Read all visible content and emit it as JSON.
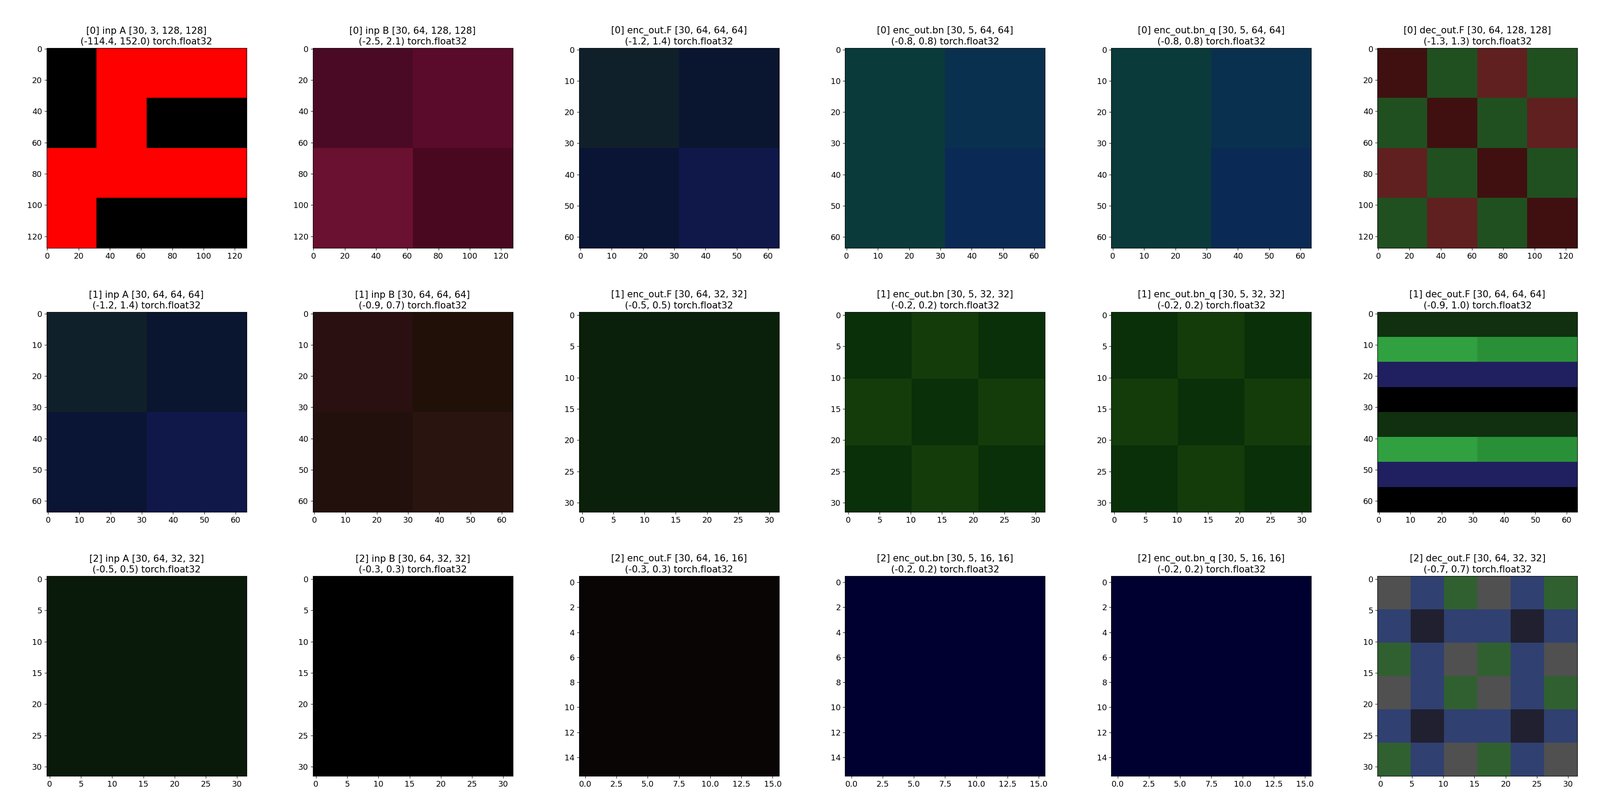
{
  "chart_data": [
    {
      "type": "image",
      "title": "[0] inp A [30, 3, 128, 128]\n(-114.4, 152.0) torch.float32",
      "xlim": [
        -0.5,
        127.5
      ],
      "ylim": [
        127.5,
        -0.5
      ],
      "xticks": [
        0,
        20,
        40,
        60,
        80,
        100,
        120
      ],
      "yticks": [
        0,
        20,
        40,
        60,
        80,
        100,
        120
      ],
      "cells": [
        [
          "#000000",
          "#ff0000",
          "#ff0000",
          "#ff0000"
        ],
        [
          "#000000",
          "#ff0000",
          "#000000",
          "#000000"
        ],
        [
          "#ff0000",
          "#ff0000",
          "#ff0000",
          "#ff0000"
        ],
        [
          "#ff0000",
          "#000000",
          "#000000",
          "#000000"
        ]
      ]
    },
    {
      "type": "image",
      "title": "[0] inp B [30, 64, 128, 128]\n(-2.5, 2.1) torch.float32",
      "xlim": [
        -0.5,
        127.5
      ],
      "ylim": [
        127.5,
        -0.5
      ],
      "xticks": [
        0,
        20,
        40,
        60,
        80,
        100,
        120
      ],
      "yticks": [
        0,
        20,
        40,
        60,
        80,
        100,
        120
      ],
      "cells": [
        [
          "#4a0a25",
          "#5a0a2a"
        ],
        [
          "#6a1030",
          "#4a0820"
        ]
      ]
    },
    {
      "type": "image",
      "title": "[0] enc_out.F [30, 64, 64, 64]\n(-1.2, 1.4) torch.float32",
      "xlim": [
        -0.5,
        63.5
      ],
      "ylim": [
        63.5,
        -0.5
      ],
      "xticks": [
        0,
        10,
        20,
        30,
        40,
        50,
        60
      ],
      "yticks": [
        0,
        10,
        20,
        30,
        40,
        50,
        60
      ],
      "cells": [
        [
          "#10202a",
          "#0a1530"
        ],
        [
          "#0a1535",
          "#10184a"
        ]
      ]
    },
    {
      "type": "image",
      "title": "[0] enc_out.bn [30, 5, 64, 64]\n(-0.8, 0.8) torch.float32",
      "xlim": [
        -0.5,
        63.5
      ],
      "ylim": [
        63.5,
        -0.5
      ],
      "xticks": [
        0,
        10,
        20,
        30,
        40,
        50,
        60
      ],
      "yticks": [
        0,
        10,
        20,
        30,
        40,
        50,
        60
      ],
      "cells": [
        [
          "#0a3a3a",
          "#0a3050"
        ],
        [
          "#0a3a3a",
          "#0a2a55"
        ]
      ]
    },
    {
      "type": "image",
      "title": "[0] enc_out.bn_q [30, 5, 64, 64]\n(-0.8, 0.8) torch.float32",
      "xlim": [
        -0.5,
        63.5
      ],
      "ylim": [
        63.5,
        -0.5
      ],
      "xticks": [
        0,
        10,
        20,
        30,
        40,
        50,
        60
      ],
      "yticks": [
        0,
        10,
        20,
        30,
        40,
        50,
        60
      ],
      "cells": [
        [
          "#0a3a3a",
          "#0a3050"
        ],
        [
          "#0a3a3a",
          "#0a2a55"
        ]
      ]
    },
    {
      "type": "image",
      "title": "[0] dec_out.F [30, 64, 128, 128]\n(-1.3, 1.3) torch.float32",
      "xlim": [
        -0.5,
        127.5
      ],
      "ylim": [
        127.5,
        -0.5
      ],
      "xticks": [
        0,
        20,
        40,
        60,
        80,
        100,
        120
      ],
      "yticks": [
        0,
        20,
        40,
        60,
        80,
        100,
        120
      ],
      "cells": [
        [
          "#401010",
          "#205020",
          "#602020",
          "#205020"
        ],
        [
          "#205020",
          "#401010",
          "#205020",
          "#602020"
        ],
        [
          "#602020",
          "#205020",
          "#401010",
          "#205020"
        ],
        [
          "#205020",
          "#602020",
          "#205020",
          "#401010"
        ]
      ]
    },
    {
      "type": "image",
      "title": "[1] inp A [30, 64, 64, 64]\n(-1.2, 1.4) torch.float32",
      "xlim": [
        -0.5,
        63.5
      ],
      "ylim": [
        63.5,
        -0.5
      ],
      "xticks": [
        0,
        10,
        20,
        30,
        40,
        50,
        60
      ],
      "yticks": [
        0,
        10,
        20,
        30,
        40,
        50,
        60
      ],
      "cells": [
        [
          "#10202a",
          "#0a1530"
        ],
        [
          "#0a1535",
          "#10184a"
        ]
      ]
    },
    {
      "type": "image",
      "title": "[1] inp B [30, 64, 64, 64]\n(-0.9, 0.7) torch.float32",
      "xlim": [
        -0.5,
        63.5
      ],
      "ylim": [
        63.5,
        -0.5
      ],
      "xticks": [
        0,
        10,
        20,
        30,
        40,
        50,
        60
      ],
      "yticks": [
        0,
        10,
        20,
        30,
        40,
        50,
        60
      ],
      "cells": [
        [
          "#2a1010",
          "#201008"
        ],
        [
          "#22100c",
          "#2a1410"
        ]
      ]
    },
    {
      "type": "image",
      "title": "[1] enc_out.F [30, 64, 32, 32]\n(-0.5, 0.5) torch.float32",
      "xlim": [
        -0.5,
        31.5
      ],
      "ylim": [
        31.5,
        -0.5
      ],
      "xticks": [
        0,
        5,
        10,
        15,
        20,
        25,
        30
      ],
      "yticks": [
        0,
        5,
        10,
        15,
        20,
        25,
        30
      ],
      "cells": [
        [
          "#0a200a"
        ]
      ]
    },
    {
      "type": "image",
      "title": "[1] enc_out.bn [30, 5, 32, 32]\n(-0.2, 0.2) torch.float32",
      "xlim": [
        -0.5,
        31.5
      ],
      "ylim": [
        31.5,
        -0.5
      ],
      "xticks": [
        0,
        5,
        10,
        15,
        20,
        25,
        30
      ],
      "yticks": [
        0,
        5,
        10,
        15,
        20,
        25,
        30
      ],
      "cells": [
        [
          "#0a300a",
          "#143c0a",
          "#0a300a"
        ],
        [
          "#143c0a",
          "#0a300a",
          "#143c0a"
        ],
        [
          "#0a300a",
          "#143c0a",
          "#0a300a"
        ]
      ]
    },
    {
      "type": "image",
      "title": "[1] enc_out.bn_q [30, 5, 32, 32]\n(-0.2, 0.2) torch.float32",
      "xlim": [
        -0.5,
        31.5
      ],
      "ylim": [
        31.5,
        -0.5
      ],
      "xticks": [
        0,
        5,
        10,
        15,
        20,
        25,
        30
      ],
      "yticks": [
        0,
        5,
        10,
        15,
        20,
        25,
        30
      ],
      "cells": [
        [
          "#0a300a",
          "#143c0a",
          "#0a300a"
        ],
        [
          "#143c0a",
          "#0a300a",
          "#143c0a"
        ],
        [
          "#0a300a",
          "#143c0a",
          "#0a300a"
        ]
      ]
    },
    {
      "type": "image",
      "title": "[1] dec_out.F [30, 64, 64, 64]\n(-0.9, 1.0) torch.float32",
      "xlim": [
        -0.5,
        63.5
      ],
      "ylim": [
        63.5,
        -0.5
      ],
      "xticks": [
        0,
        10,
        20,
        30,
        40,
        50,
        60
      ],
      "yticks": [
        0,
        10,
        20,
        30,
        40,
        50,
        60
      ],
      "cells": [
        [
          "#103010",
          "#103010"
        ],
        [
          "#30a040",
          "#2a9038"
        ],
        [
          "#202060",
          "#202060"
        ],
        [
          "#000000",
          "#000000"
        ],
        [
          "#103010",
          "#103010"
        ],
        [
          "#30a040",
          "#2a9038"
        ],
        [
          "#202060",
          "#202060"
        ],
        [
          "#000000",
          "#000000"
        ]
      ]
    },
    {
      "type": "image",
      "title": "[2] inp A [30, 64, 32, 32]\n(-0.5, 0.5) torch.float32",
      "xlim": [
        -0.5,
        31.5
      ],
      "ylim": [
        31.5,
        -0.5
      ],
      "xticks": [
        0,
        5,
        10,
        15,
        20,
        25,
        30
      ],
      "yticks": [
        0,
        5,
        10,
        15,
        20,
        25,
        30
      ],
      "cells": [
        [
          "#0a1a0a"
        ]
      ]
    },
    {
      "type": "image",
      "title": "[2] inp B [30, 64, 32, 32]\n(-0.3, 0.3) torch.float32",
      "xlim": [
        -0.5,
        31.5
      ],
      "ylim": [
        31.5,
        -0.5
      ],
      "xticks": [
        0,
        5,
        10,
        15,
        20,
        25,
        30
      ],
      "yticks": [
        0,
        5,
        10,
        15,
        20,
        25,
        30
      ],
      "cells": [
        [
          "#000000"
        ]
      ]
    },
    {
      "type": "image",
      "title": "[2] enc_out.F [30, 64, 16, 16]\n(-0.3, 0.3) torch.float32",
      "xlim": [
        -0.5,
        15.5
      ],
      "ylim": [
        15.5,
        -0.5
      ],
      "xticks": [
        0.0,
        2.5,
        5.0,
        7.5,
        10.0,
        12.5,
        15.0
      ],
      "yticks": [
        0,
        2,
        4,
        6,
        8,
        10,
        12,
        14
      ],
      "cells": [
        [
          "#0a0505"
        ]
      ]
    },
    {
      "type": "image",
      "title": "[2] enc_out.bn [30, 5, 16, 16]\n(-0.2, 0.2) torch.float32",
      "xlim": [
        -0.5,
        15.5
      ],
      "ylim": [
        15.5,
        -0.5
      ],
      "xticks": [
        0.0,
        2.5,
        5.0,
        7.5,
        10.0,
        12.5,
        15.0
      ],
      "yticks": [
        0,
        2,
        4,
        6,
        8,
        10,
        12,
        14
      ],
      "cells": [
        [
          "#000030"
        ]
      ]
    },
    {
      "type": "image",
      "title": "[2] enc_out.bn_q [30, 5, 16, 16]\n(-0.2, 0.2) torch.float32",
      "xlim": [
        -0.5,
        15.5
      ],
      "ylim": [
        15.5,
        -0.5
      ],
      "xticks": [
        0.0,
        2.5,
        5.0,
        7.5,
        10.0,
        12.5,
        15.0
      ],
      "yticks": [
        0,
        2,
        4,
        6,
        8,
        10,
        12,
        14
      ],
      "cells": [
        [
          "#000030"
        ]
      ]
    },
    {
      "type": "image",
      "title": "[2] dec_out.F [30, 64, 32, 32]\n(-0.7, 0.7) torch.float32",
      "xlim": [
        -0.5,
        31.5
      ],
      "ylim": [
        31.5,
        -0.5
      ],
      "xticks": [
        0,
        5,
        10,
        15,
        20,
        25,
        30
      ],
      "yticks": [
        0,
        5,
        10,
        15,
        20,
        25,
        30
      ],
      "cells": [
        [
          "#505050",
          "#304070",
          "#306030",
          "#505050",
          "#304070",
          "#306030"
        ],
        [
          "#304070",
          "#202030",
          "#304070",
          "#304070",
          "#202030",
          "#304070"
        ],
        [
          "#306030",
          "#304070",
          "#505050",
          "#306030",
          "#304070",
          "#505050"
        ],
        [
          "#505050",
          "#304070",
          "#306030",
          "#505050",
          "#304070",
          "#306030"
        ],
        [
          "#304070",
          "#202030",
          "#304070",
          "#304070",
          "#202030",
          "#304070"
        ],
        [
          "#306030",
          "#304070",
          "#505050",
          "#306030",
          "#304070",
          "#505050"
        ]
      ]
    }
  ]
}
